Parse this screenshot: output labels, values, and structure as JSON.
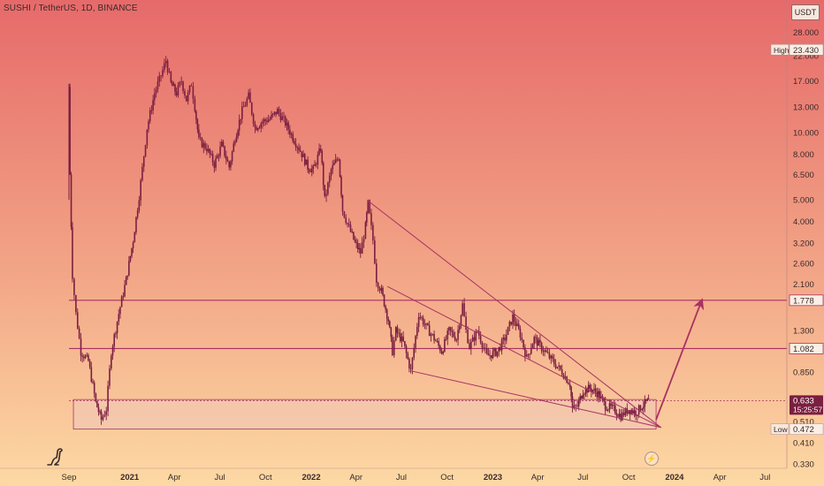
{
  "header": {
    "symbol_line": "SUSHI / TetherUS, 1D, BINANCE",
    "currency": "USDT"
  },
  "icons": {
    "logo": "dinosaur-logo-icon",
    "bolt": "lightning-icon"
  },
  "colors": {
    "bg_top": "#e66a6a",
    "bg_bottom": "#fdd9a4",
    "candle": "#7a1f40",
    "annotation": "#a83262",
    "support_zone_fill": "#f2c7b0",
    "support_zone_border": "#a83262"
  },
  "chart_data": {
    "type": "candlestick",
    "symbol": "SUSHI / TetherUS",
    "interval": "1D",
    "exchange": "BINANCE",
    "y_scale": "log",
    "ylim": [
      0.33,
      32
    ],
    "xlim": [
      "2020-09-01",
      "2024-07-20"
    ],
    "y_ticks": [
      "28.000",
      "22.000",
      "17.000",
      "13.000",
      "10.000",
      "8.000",
      "6.500",
      "5.000",
      "4.000",
      "3.200",
      "2.600",
      "2.100",
      "1.300",
      "0.850",
      "0.510",
      "0.410",
      "0.330"
    ],
    "x_ticks": [
      {
        "label": "Sep",
        "date": "2020-09-01"
      },
      {
        "label": "2021",
        "date": "2021-01-01",
        "bold": true
      },
      {
        "label": "Apr",
        "date": "2021-04-01"
      },
      {
        "label": "Jul",
        "date": "2021-07-01"
      },
      {
        "label": "Oct",
        "date": "2021-10-01"
      },
      {
        "label": "2022",
        "date": "2022-01-01",
        "bold": true
      },
      {
        "label": "Apr",
        "date": "2022-04-01"
      },
      {
        "label": "Jul",
        "date": "2022-07-01"
      },
      {
        "label": "Oct",
        "date": "2022-10-01"
      },
      {
        "label": "2023",
        "date": "2023-01-01",
        "bold": true
      },
      {
        "label": "Apr",
        "date": "2023-04-01"
      },
      {
        "label": "Jul",
        "date": "2023-07-01"
      },
      {
        "label": "Oct",
        "date": "2023-10-01"
      },
      {
        "label": "2024",
        "date": "2024-01-01",
        "bold": true
      },
      {
        "label": "Apr",
        "date": "2024-04-01"
      },
      {
        "label": "Jul",
        "date": "2024-07-01"
      }
    ],
    "price_path": [
      [
        "2020-09-01",
        16.0
      ],
      [
        "2020-09-03",
        6.5
      ],
      [
        "2020-09-08",
        2.3
      ],
      [
        "2020-09-15",
        1.55
      ],
      [
        "2020-09-25",
        1.05
      ],
      [
        "2020-10-10",
        0.95
      ],
      [
        "2020-10-25",
        0.62
      ],
      [
        "2020-11-05",
        0.52
      ],
      [
        "2020-11-15",
        0.58
      ],
      [
        "2020-11-25",
        1.05
      ],
      [
        "2020-12-10",
        1.55
      ],
      [
        "2020-12-25",
        2.2
      ],
      [
        "2021-01-08",
        3.3
      ],
      [
        "2021-01-20",
        5.2
      ],
      [
        "2021-02-05",
        10.5
      ],
      [
        "2021-02-20",
        15.0
      ],
      [
        "2021-03-05",
        18.0
      ],
      [
        "2021-03-15",
        21.0
      ],
      [
        "2021-03-25",
        16.5
      ],
      [
        "2021-04-05",
        15.0
      ],
      [
        "2021-04-15",
        17.0
      ],
      [
        "2021-04-25",
        14.0
      ],
      [
        "2021-05-05",
        16.5
      ],
      [
        "2021-05-12",
        13.0
      ],
      [
        "2021-05-20",
        9.2
      ],
      [
        "2021-06-05",
        8.5
      ],
      [
        "2021-06-20",
        7.2
      ],
      [
        "2021-07-05",
        8.8
      ],
      [
        "2021-07-20",
        7.0
      ],
      [
        "2021-08-01",
        9.5
      ],
      [
        "2021-08-15",
        12.5
      ],
      [
        "2021-08-28",
        14.5
      ],
      [
        "2021-09-10",
        10.5
      ],
      [
        "2021-09-25",
        11.2
      ],
      [
        "2021-10-10",
        11.5
      ],
      [
        "2021-10-25",
        12.5
      ],
      [
        "2021-11-10",
        11.0
      ],
      [
        "2021-11-25",
        9.5
      ],
      [
        "2021-12-10",
        8.3
      ],
      [
        "2021-12-25",
        7.0
      ],
      [
        "2022-01-05",
        6.8
      ],
      [
        "2022-01-20",
        8.5
      ],
      [
        "2022-01-28",
        5.0
      ],
      [
        "2022-02-10",
        6.8
      ],
      [
        "2022-02-25",
        7.8
      ],
      [
        "2022-03-05",
        4.5
      ],
      [
        "2022-03-15",
        3.9
      ],
      [
        "2022-03-30",
        3.2
      ],
      [
        "2022-04-10",
        2.9
      ],
      [
        "2022-04-20",
        3.8
      ],
      [
        "2022-04-25",
        4.8
      ],
      [
        "2022-05-05",
        3.3
      ],
      [
        "2022-05-12",
        2.2
      ],
      [
        "2022-05-22",
        1.95
      ],
      [
        "2022-06-05",
        1.45
      ],
      [
        "2022-06-13",
        1.05
      ],
      [
        "2022-06-20",
        1.3
      ],
      [
        "2022-07-05",
        1.15
      ],
      [
        "2022-07-20",
        0.86
      ],
      [
        "2022-08-05",
        1.55
      ],
      [
        "2022-08-20",
        1.35
      ],
      [
        "2022-09-05",
        1.2
      ],
      [
        "2022-09-20",
        1.05
      ],
      [
        "2022-10-05",
        1.3
      ],
      [
        "2022-10-20",
        1.2
      ],
      [
        "2022-11-01",
        1.7
      ],
      [
        "2022-11-08",
        1.3
      ],
      [
        "2022-11-15",
        1.1
      ],
      [
        "2022-12-01",
        1.3
      ],
      [
        "2022-12-20",
        1.0
      ],
      [
        "2023-01-10",
        1.05
      ],
      [
        "2023-01-25",
        1.2
      ],
      [
        "2023-02-10",
        1.5
      ],
      [
        "2023-02-25",
        1.25
      ],
      [
        "2023-03-10",
        0.98
      ],
      [
        "2023-03-25",
        1.2
      ],
      [
        "2023-04-15",
        1.05
      ],
      [
        "2023-05-01",
        0.95
      ],
      [
        "2023-05-20",
        0.85
      ],
      [
        "2023-06-05",
        0.75
      ],
      [
        "2023-06-10",
        0.58
      ],
      [
        "2023-06-20",
        0.6
      ],
      [
        "2023-07-01",
        0.7
      ],
      [
        "2023-07-15",
        0.72
      ],
      [
        "2023-08-01",
        0.68
      ],
      [
        "2023-08-15",
        0.6
      ],
      [
        "2023-09-01",
        0.58
      ],
      [
        "2023-09-15",
        0.54
      ],
      [
        "2023-10-01",
        0.58
      ],
      [
        "2023-10-15",
        0.56
      ],
      [
        "2023-10-28",
        0.6
      ],
      [
        "2023-11-05",
        0.62
      ],
      [
        "2023-11-10",
        0.633
      ]
    ],
    "levels": [
      {
        "label": "1.778",
        "price": 1.778
      },
      {
        "label": "1.082",
        "price": 1.082
      }
    ],
    "price_tags": [
      {
        "label": "High",
        "value": "23.430",
        "price": 23.43,
        "style": "plain"
      },
      {
        "label": "",
        "value": "0.633",
        "price": 0.633,
        "style": "current",
        "countdown": "15:25:57"
      },
      {
        "label": "Low",
        "value": "0.472",
        "price": 0.472,
        "style": "plain"
      }
    ],
    "support_zone": {
      "x_start": "2020-09-10",
      "x_end": "2023-11-25",
      "y_low": 0.472,
      "y_high": 0.64
    },
    "trendlines": [
      {
        "start": [
          "2022-04-25",
          4.95
        ],
        "end": [
          "2023-12-05",
          0.48
        ]
      },
      {
        "start": [
          "2022-06-03",
          2.05
        ],
        "end": [
          "2023-12-05",
          0.48
        ]
      },
      {
        "start": [
          "2022-07-20",
          0.86
        ],
        "end": [
          "2023-12-05",
          0.48
        ]
      }
    ],
    "projection_arrow": {
      "start": [
        "2023-11-25",
        0.52
      ],
      "end": [
        "2024-02-25",
        1.78
      ]
    }
  }
}
